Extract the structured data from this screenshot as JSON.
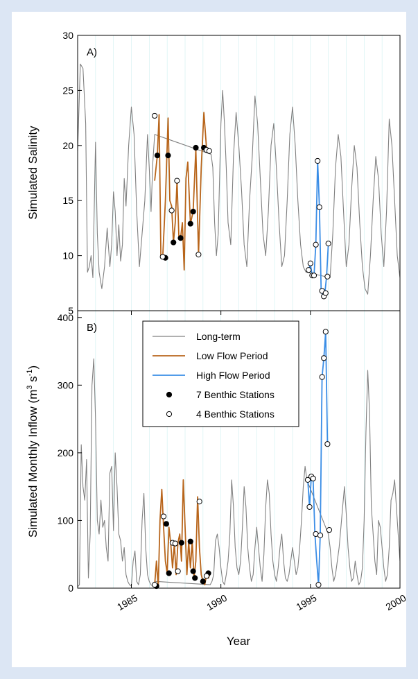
{
  "colors": {
    "background": "#dce6f4",
    "long_term": "#808080",
    "low_flow": "#b8651b",
    "high_flow": "#3a8ee6",
    "axis": "#000000",
    "grid": "#cfeff0"
  },
  "chart_data": [
    {
      "panel": "top",
      "type": "line",
      "annotation": "A)",
      "xlabel": "",
      "ylabel": "Simulated Salinity",
      "xlim": [
        1982,
        2000
      ],
      "ylim": [
        5,
        30
      ],
      "yticks": [
        "5",
        "10",
        "15",
        "20",
        "25",
        "30"
      ],
      "series": [
        {
          "name": "Long-term",
          "style": "gray-line",
          "x": [
            1982.0,
            1982.15,
            1982.3,
            1982.45,
            1982.55,
            1982.65,
            1982.75,
            1982.85,
            1983.0,
            1983.1,
            1983.2,
            1983.35,
            1983.5,
            1983.65,
            1983.8,
            1983.9,
            1984.0,
            1984.1,
            1984.2,
            1984.3,
            1984.4,
            1984.5,
            1984.6,
            1984.7,
            1984.85,
            1985.0,
            1985.15,
            1985.3,
            1985.45,
            1985.6,
            1985.75,
            1985.9,
            1986.0,
            1986.1,
            1986.2,
            1986.3,
            1989.45,
            1989.55,
            1989.65,
            1989.75,
            1989.85,
            1990.0,
            1990.1,
            1990.2,
            1990.3,
            1990.4,
            1990.55,
            1990.7,
            1990.85,
            1991.0,
            1991.15,
            1991.3,
            1991.45,
            1991.6,
            1991.75,
            1991.9,
            1992.05,
            1992.2,
            1992.35,
            1992.5,
            1992.65,
            1992.8,
            1992.95,
            1993.1,
            1993.25,
            1993.4,
            1993.55,
            1993.7,
            1993.85,
            1994.0,
            1994.15,
            1994.3,
            1994.45,
            1994.6,
            1994.75,
            1996.1,
            1996.25,
            1996.4,
            1996.55,
            1996.7,
            1996.85,
            1997.0,
            1997.15,
            1997.3,
            1997.45,
            1997.6,
            1997.75,
            1997.9,
            1998.05,
            1998.2,
            1998.35,
            1998.5,
            1998.65,
            1998.8,
            1998.95,
            1999.1,
            1999.25,
            1999.4,
            1999.55,
            1999.7,
            1999.85,
            2000.0
          ],
          "y": [
            19.5,
            27.4,
            27.0,
            22.0,
            8.5,
            9.0,
            10.0,
            8.0,
            20.3,
            12.0,
            8.5,
            7.0,
            9.0,
            12.5,
            9.0,
            11.0,
            15.8,
            14.0,
            10.0,
            12.8,
            9.5,
            11.0,
            17.0,
            14.5,
            20.0,
            23.5,
            21.0,
            14.0,
            9.0,
            12.0,
            15.0,
            21.0,
            18.0,
            14.0,
            18.5,
            21.0,
            19.2,
            18.0,
            13.0,
            10.0,
            12.0,
            22.0,
            25.0,
            22.0,
            18.0,
            13.0,
            11.0,
            19.0,
            23.0,
            20.0,
            16.0,
            11.0,
            9.0,
            15.0,
            19.0,
            24.5,
            22.0,
            17.0,
            12.0,
            10.0,
            14.0,
            20.0,
            22.0,
            18.0,
            13.0,
            9.0,
            10.0,
            15.0,
            21.0,
            23.5,
            20.0,
            15.0,
            11.0,
            9.0,
            8.5,
            8.0,
            12.0,
            18.0,
            21.0,
            19.0,
            14.0,
            9.0,
            11.0,
            16.0,
            20.0,
            18.0,
            13.0,
            9.0,
            7.0,
            6.5,
            10.0,
            15.0,
            19.0,
            17.0,
            12.0,
            9.0,
            14.0,
            22.4,
            20.0,
            15.0,
            10.0,
            8.0
          ]
        },
        {
          "name": "Low Flow Period",
          "style": "brown-line",
          "x": [
            1986.3,
            1986.45,
            1986.55,
            1986.65,
            1986.75,
            1986.9,
            1987.05,
            1987.15,
            1987.25,
            1987.35,
            1987.45,
            1987.55,
            1987.65,
            1987.75,
            1987.85,
            1987.95,
            1988.05,
            1988.15,
            1988.3,
            1988.45,
            1988.6,
            1988.75,
            1988.9,
            1989.05,
            1989.2,
            1989.35
          ],
          "y": [
            16.8,
            19.1,
            22.8,
            10.0,
            9.8,
            15.0,
            22.5,
            15.0,
            14.5,
            11.2,
            13.0,
            16.8,
            11.8,
            11.6,
            13.0,
            8.7,
            17.0,
            18.5,
            12.9,
            14.0,
            19.7,
            10.1,
            18.0,
            23.0,
            19.7,
            19.5
          ]
        },
        {
          "name": "High Flow Period",
          "style": "blue-line",
          "x": [
            1994.9,
            1995.0,
            1995.1,
            1995.2,
            1995.3,
            1995.4,
            1995.5,
            1995.6,
            1995.7,
            1995.8,
            1995.9,
            1996.0
          ],
          "y": [
            8.7,
            9.2,
            8.2,
            8.2,
            11.0,
            18.6,
            14.4,
            6.8,
            6.3,
            6.5,
            8.1,
            11.1
          ]
        },
        {
          "name": "7 Benthic Stations",
          "style": "filled-circle",
          "x": [
            1986.45,
            1986.9,
            1987.05,
            1987.35,
            1987.75,
            1988.3,
            1988.45,
            1988.6,
            1989.05
          ],
          "y": [
            19.1,
            9.8,
            19.1,
            11.2,
            11.6,
            12.9,
            14.0,
            19.8,
            19.8
          ]
        },
        {
          "name": "4 Benthic Stations",
          "style": "open-circle",
          "x": [
            1986.3,
            1986.75,
            1987.25,
            1987.55,
            1988.75,
            1989.2,
            1989.35,
            1994.9,
            1995.0,
            1995.1,
            1995.2,
            1995.3,
            1995.4,
            1995.5,
            1995.65,
            1995.75,
            1995.85,
            1995.95,
            1996.0
          ],
          "y": [
            22.7,
            9.9,
            14.1,
            16.8,
            10.1,
            19.6,
            19.5,
            8.7,
            9.3,
            8.2,
            8.2,
            11.0,
            18.6,
            14.4,
            6.8,
            6.3,
            6.6,
            8.1,
            11.1
          ]
        }
      ]
    },
    {
      "panel": "bottom",
      "type": "line",
      "annotation": "B)",
      "xlabel": "Year",
      "ylabel": "Simulated Monthly Inflow (m",
      "ylabel_sup1": "3",
      "ylabel_mid": " s",
      "ylabel_sup2": "-1",
      "ylabel_end": ")",
      "xlim": [
        1982,
        2000
      ],
      "ylim": [
        0,
        410
      ],
      "xticks": [
        "1985",
        "1990",
        "1995",
        "2000"
      ],
      "yticks": [
        "0",
        "100",
        "200",
        "300",
        "400"
      ],
      "series": [
        {
          "name": "Long-term",
          "style": "gray-line",
          "x": [
            1982.0,
            1982.1,
            1982.2,
            1982.3,
            1982.4,
            1982.5,
            1982.6,
            1982.7,
            1982.8,
            1982.9,
            1983.0,
            1983.1,
            1983.2,
            1983.3,
            1983.4,
            1983.5,
            1983.6,
            1983.7,
            1983.8,
            1983.9,
            1984.0,
            1984.1,
            1984.2,
            1984.3,
            1984.4,
            1984.5,
            1984.6,
            1984.7,
            1984.8,
            1984.9,
            1985.0,
            1985.1,
            1985.2,
            1985.3,
            1985.4,
            1985.5,
            1985.6,
            1985.7,
            1985.8,
            1985.9,
            1986.0,
            1986.1,
            1986.2,
            1986.3,
            1989.4,
            1989.5,
            1989.6,
            1989.7,
            1989.8,
            1989.9,
            1990.0,
            1990.1,
            1990.2,
            1990.3,
            1990.4,
            1990.5,
            1990.6,
            1990.7,
            1990.8,
            1990.9,
            1991.0,
            1991.1,
            1991.2,
            1991.3,
            1991.4,
            1991.5,
            1991.6,
            1991.7,
            1991.8,
            1991.9,
            1992.0,
            1992.1,
            1992.2,
            1992.3,
            1992.4,
            1992.5,
            1992.6,
            1992.7,
            1992.8,
            1992.9,
            1993.0,
            1993.1,
            1993.2,
            1993.3,
            1993.4,
            1993.5,
            1993.6,
            1993.7,
            1993.8,
            1993.9,
            1994.0,
            1994.1,
            1994.2,
            1994.3,
            1994.4,
            1994.5,
            1994.6,
            1994.7,
            1994.8,
            1996.0,
            1996.1,
            1996.2,
            1996.3,
            1996.4,
            1996.5,
            1996.6,
            1996.7,
            1996.8,
            1996.9,
            1997.0,
            1997.1,
            1997.2,
            1997.3,
            1997.4,
            1997.5,
            1997.6,
            1997.7,
            1997.8,
            1997.9,
            1998.0,
            1998.1,
            1998.2,
            1998.3,
            1998.4,
            1998.5,
            1998.6,
            1998.7,
            1998.8,
            1998.9,
            1999.0,
            1999.1,
            1999.2,
            1999.3,
            1999.4,
            1999.5,
            1999.6,
            1999.7,
            1999.8,
            1999.9,
            2000.0
          ],
          "y": [
            2,
            5,
            212,
            150,
            130,
            190,
            15,
            80,
            300,
            339,
            250,
            100,
            80,
            130,
            90,
            100,
            60,
            40,
            170,
            180,
            85,
            200,
            150,
            80,
            70,
            40,
            60,
            20,
            10,
            5,
            3,
            40,
            55,
            10,
            5,
            20,
            100,
            140,
            60,
            20,
            10,
            5,
            3,
            10,
            5,
            10,
            20,
            70,
            80,
            60,
            30,
            10,
            5,
            20,
            40,
            80,
            160,
            120,
            60,
            30,
            20,
            40,
            90,
            150,
            120,
            60,
            30,
            10,
            20,
            60,
            90,
            60,
            30,
            10,
            50,
            120,
            160,
            140,
            80,
            40,
            20,
            10,
            30,
            60,
            80,
            40,
            15,
            10,
            20,
            40,
            60,
            40,
            20,
            30,
            60,
            100,
            150,
            180,
            160,
            80,
            60,
            30,
            10,
            20,
            40,
            60,
            90,
            120,
            150,
            110,
            60,
            30,
            10,
            15,
            40,
            20,
            5,
            10,
            30,
            100,
            230,
            322,
            260,
            120,
            80,
            40,
            20,
            100,
            90,
            60,
            30,
            10,
            20,
            60,
            130,
            140,
            160,
            120,
            80,
            40
          ]
        },
        {
          "name": "Low Flow Period",
          "style": "brown-line",
          "x": [
            1986.3,
            1986.4,
            1986.5,
            1986.6,
            1986.7,
            1986.8,
            1986.9,
            1987.0,
            1987.1,
            1987.2,
            1987.3,
            1987.4,
            1987.5,
            1987.6,
            1987.7,
            1987.8,
            1987.9,
            1988.0,
            1988.1,
            1988.2,
            1988.3,
            1988.4,
            1988.5,
            1988.6,
            1988.7,
            1988.8,
            1988.9,
            1989.0,
            1989.1,
            1989.2,
            1989.3,
            1989.4
          ],
          "y": [
            5,
            40,
            2,
            100,
            146,
            90,
            40,
            22,
            90,
            66,
            30,
            66,
            20,
            67,
            80,
            40,
            160,
            90,
            20,
            69,
            30,
            69,
            15,
            40,
            135,
            60,
            20,
            10,
            5,
            20,
            15,
            22
          ]
        },
        {
          "name": "High Flow Period",
          "style": "blue-line",
          "x": [
            1994.85,
            1994.95,
            1995.05,
            1995.15,
            1995.25,
            1995.35,
            1995.45,
            1995.55,
            1995.65,
            1995.75,
            1995.85,
            1995.95
          ],
          "y": [
            160,
            120,
            165,
            160,
            80,
            40,
            5,
            80,
            312,
            340,
            379,
            213
          ]
        },
        {
          "name": "7 Benthic Stations",
          "style": "filled-circle",
          "x": [
            1986.4,
            1986.95,
            1987.1,
            1987.8,
            1988.3,
            1988.45,
            1988.55,
            1989.0,
            1989.3
          ],
          "y": [
            3,
            95,
            22,
            67,
            69,
            25,
            15,
            10,
            22
          ]
        },
        {
          "name": "4 Benthic Stations",
          "style": "open-circle",
          "x": [
            1986.3,
            1986.8,
            1987.3,
            1987.45,
            1987.6,
            1988.8,
            1989.2,
            1994.85,
            1994.95,
            1995.05,
            1995.15,
            1995.3,
            1995.45,
            1995.55,
            1995.65,
            1995.75,
            1995.85,
            1995.95,
            1996.05
          ],
          "y": [
            5,
            106,
            67,
            66,
            25,
            128,
            18,
            160,
            120,
            165,
            162,
            80,
            5,
            78,
            312,
            340,
            379,
            213,
            86
          ]
        }
      ]
    }
  ],
  "legend": {
    "placement": "upper-center of panel B",
    "entries": [
      {
        "label": "Long-term",
        "style": "gray-line"
      },
      {
        "label": "Low Flow Period",
        "style": "brown-line"
      },
      {
        "label": "High Flow Period",
        "style": "blue-line"
      },
      {
        "label": "7 Benthic Stations",
        "style": "filled-circle"
      },
      {
        "label": "4 Benthic Stations",
        "style": "open-circle"
      }
    ]
  }
}
